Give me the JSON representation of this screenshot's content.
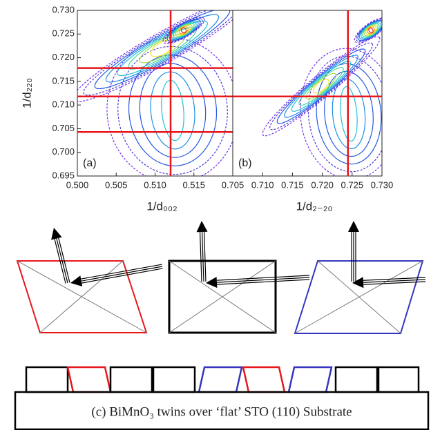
{
  "chart_data": [
    {
      "type": "contour",
      "panel_label": "(a)",
      "xlabel": "1/d₀₀₂",
      "ylabel": "1/d₂₂₀",
      "xlim": [
        0.5,
        0.52
      ],
      "xticks": [
        {
          "value": 0.5,
          "label": "0.500"
        },
        0.505,
        {
          "value": 0.51,
          "label": "0.510"
        },
        0.515
      ],
      "ylim": [
        0.695,
        0.73
      ],
      "yticks": [
        0.695,
        {
          "value": 0.7,
          "label": "0.700"
        },
        0.705,
        {
          "value": 0.71,
          "label": "0.710"
        },
        0.715,
        {
          "value": 0.72,
          "label": "0.720"
        },
        0.725,
        {
          "value": 0.73,
          "label": "0.730"
        }
      ],
      "vlines": [
        0.512
      ],
      "hlines": [
        0.7178,
        0.7118,
        0.7043
      ],
      "line_color": "#e8161b"
    },
    {
      "type": "contour",
      "panel_label": "(b)",
      "xlabel": "1/d₂₋₂₀",
      "xlim": [
        0.705,
        0.73
      ],
      "xticks": [
        0.705,
        {
          "value": 0.71,
          "label": "0.710"
        },
        0.715,
        {
          "value": 0.72,
          "label": "0.720"
        },
        0.725,
        {
          "value": 0.73,
          "label": "0.730"
        }
      ],
      "ylim": [
        0.695,
        0.73
      ],
      "vlines": [
        0.7243
      ],
      "hlines": [
        0.7118
      ],
      "line_color": "#e8161b"
    }
  ],
  "caption": "(c)  BiMnO₃  twins  over  ‘flat’ STO (110) Substrate"
}
